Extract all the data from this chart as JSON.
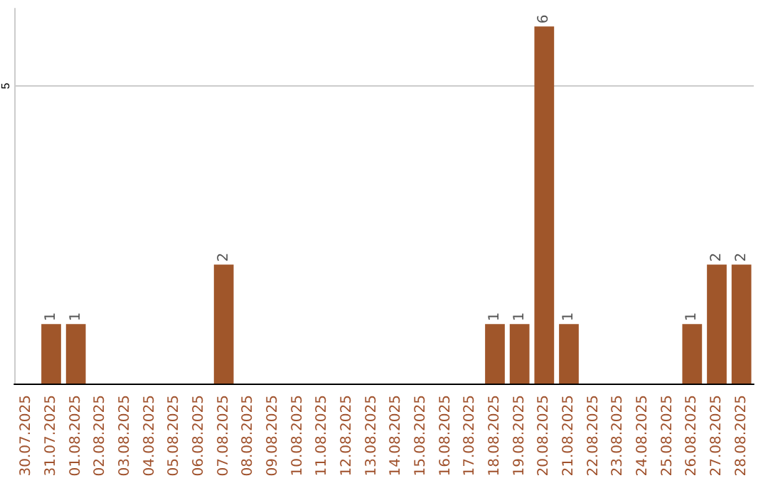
{
  "chart_data": {
    "type": "bar",
    "categories": [
      "30.07.2025",
      "31.07.2025",
      "01.08.2025",
      "02.08.2025",
      "03.08.2025",
      "04.08.2025",
      "05.08.2025",
      "06.08.2025",
      "07.08.2025",
      "08.08.2025",
      "09.08.2025",
      "10.08.2025",
      "11.08.2025",
      "12.08.2025",
      "13.08.2025",
      "14.08.2025",
      "15.08.2025",
      "16.08.2025",
      "17.08.2025",
      "18.08.2025",
      "19.08.2025",
      "20.08.2025",
      "21.08.2025",
      "22.08.2025",
      "23.08.2025",
      "24.08.2025",
      "25.08.2025",
      "26.08.2025",
      "27.08.2025",
      "28.08.2025"
    ],
    "values": [
      0,
      1,
      1,
      0,
      0,
      0,
      0,
      0,
      2,
      0,
      0,
      0,
      0,
      0,
      0,
      0,
      0,
      0,
      0,
      1,
      1,
      6,
      1,
      0,
      0,
      0,
      0,
      1,
      2,
      2
    ],
    "value_labels": [
      null,
      "1",
      "1",
      null,
      null,
      null,
      null,
      null,
      "2",
      null,
      null,
      null,
      null,
      null,
      null,
      null,
      null,
      null,
      null,
      "1",
      "1",
      "6",
      "1",
      null,
      null,
      null,
      null,
      "1",
      "2",
      "2"
    ],
    "color": "#a0562a",
    "ylim": [
      0,
      6.3
    ],
    "yticks": [
      5
    ],
    "grid": "y"
  }
}
